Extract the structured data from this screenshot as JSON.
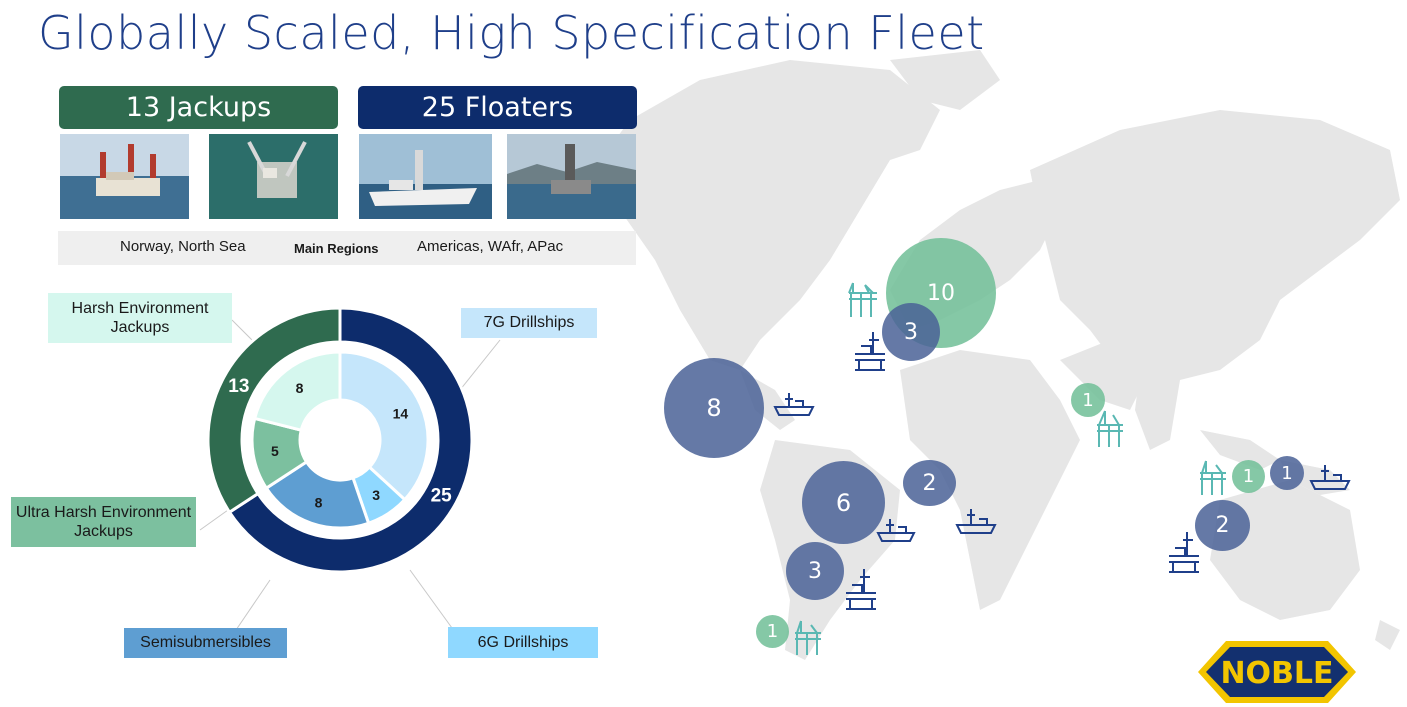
{
  "title": "Globally Scaled, High Specification Fleet",
  "jackups_label": "13 Jackups",
  "floaters_label": "25 Floaters",
  "regions": {
    "jackups": "Norway, North Sea",
    "center": "Main Regions",
    "floaters": "Americas, WAfr, APac"
  },
  "donut": {
    "outer": [
      {
        "name": "Jackups",
        "value": 13,
        "color": "#2f6b4f"
      },
      {
        "name": "Floaters",
        "value": 25,
        "color": "#0d2c6c"
      }
    ],
    "inner": [
      {
        "name": "7G Drillships",
        "value": 14,
        "color": "#c5e6fb"
      },
      {
        "name": "6G Drillships",
        "value": 3,
        "color": "#8fd8ff"
      },
      {
        "name": "Semisubmersibles",
        "value": 8,
        "color": "#5e9ed2"
      },
      {
        "name": "Ultra Harsh Environment Jackups",
        "value": 5,
        "color": "#7cc09f"
      },
      {
        "name": "Harsh Environment Jackups",
        "value": 8,
        "color": "#d5f7ee"
      }
    ]
  },
  "labels": {
    "harsh": "Harsh Environment Jackups",
    "ultra_harsh": "Ultra Harsh Environment Jackups",
    "drillships_7g": "7G Drillships",
    "drillships_6g": "6G Drillships",
    "semis": "Semisubmersibles"
  },
  "map_bubbles": [
    {
      "value": "10",
      "kind": "jackup"
    },
    {
      "value": "3",
      "kind": "floater"
    },
    {
      "value": "8",
      "kind": "floater"
    },
    {
      "value": "1",
      "kind": "jackup"
    },
    {
      "value": "2",
      "kind": "floater"
    },
    {
      "value": "6",
      "kind": "floater"
    },
    {
      "value": "3",
      "kind": "floater"
    },
    {
      "value": "1",
      "kind": "jackup"
    },
    {
      "value": "1",
      "kind": "jackup"
    },
    {
      "value": "1",
      "kind": "floater"
    },
    {
      "value": "2",
      "kind": "floater"
    }
  ],
  "logo_text": "NOBLE",
  "colors": {
    "title": "#1f3f8a",
    "jackup_green": "#2f6b4f",
    "floater_navy": "#0d2c6c",
    "map_floater": "#4a6296",
    "map_jackup": "#70be96",
    "logo_yellow": "#f2c500"
  }
}
